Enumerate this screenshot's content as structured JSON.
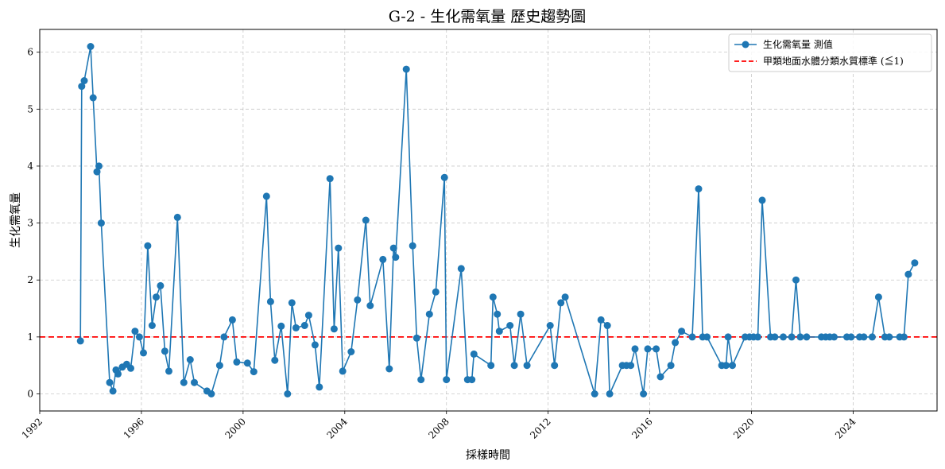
{
  "chart_data": {
    "type": "line",
    "title": "G-2 - 生化需氧量 歷史趨勢圖",
    "xlabel": "採樣時間",
    "ylabel": "生化需氧量",
    "xlim": [
      1992.0,
      2027.3
    ],
    "ylim": [
      -0.3,
      6.4
    ],
    "x_ticks": [
      1992,
      1996,
      2000,
      2004,
      2008,
      2012,
      2016,
      2020,
      2024
    ],
    "x_tick_labels": [
      "1992",
      "1996",
      "2000",
      "2004",
      "2008",
      "2012",
      "2016",
      "2020",
      "2024"
    ],
    "y_ticks": [
      0,
      1,
      2,
      3,
      4,
      5,
      6
    ],
    "y_tick_labels": [
      "0",
      "1",
      "2",
      "3",
      "4",
      "5",
      "6"
    ],
    "grid": true,
    "legend_position": "top-right",
    "series": [
      {
        "name": "生化需氧量 測值",
        "color": "#1f77b4",
        "marker": "circle",
        "points": [
          [
            1993.6,
            0.93
          ],
          [
            1993.65,
            5.4
          ],
          [
            1993.75,
            5.5
          ],
          [
            1994.0,
            6.1
          ],
          [
            1994.1,
            5.2
          ],
          [
            1994.25,
            3.9
          ],
          [
            1994.33,
            4.0
          ],
          [
            1994.42,
            3.0
          ],
          [
            1994.75,
            0.2
          ],
          [
            1994.88,
            0.05
          ],
          [
            1995.0,
            0.42
          ],
          [
            1995.08,
            0.35
          ],
          [
            1995.25,
            0.47
          ],
          [
            1995.42,
            0.52
          ],
          [
            1995.58,
            0.45
          ],
          [
            1995.75,
            1.1
          ],
          [
            1995.92,
            1.0
          ],
          [
            1996.08,
            0.72
          ],
          [
            1996.25,
            2.6
          ],
          [
            1996.42,
            1.2
          ],
          [
            1996.58,
            1.7
          ],
          [
            1996.75,
            1.9
          ],
          [
            1996.92,
            0.75
          ],
          [
            1997.08,
            0.4
          ],
          [
            1997.42,
            3.1
          ],
          [
            1997.67,
            0.2
          ],
          [
            1997.92,
            0.6
          ],
          [
            1998.08,
            0.2
          ],
          [
            1998.58,
            0.05
          ],
          [
            1998.75,
            0.0
          ],
          [
            1999.08,
            0.5
          ],
          [
            1999.25,
            1.0
          ],
          [
            1999.58,
            1.3
          ],
          [
            1999.75,
            0.56
          ],
          [
            2000.17,
            0.54
          ],
          [
            2000.42,
            0.39
          ],
          [
            2000.92,
            3.47
          ],
          [
            2001.08,
            1.62
          ],
          [
            2001.25,
            0.59
          ],
          [
            2001.5,
            1.19
          ],
          [
            2001.75,
            0.0
          ],
          [
            2001.92,
            1.6
          ],
          [
            2002.08,
            1.16
          ],
          [
            2002.42,
            1.2
          ],
          [
            2002.58,
            1.38
          ],
          [
            2002.83,
            0.86
          ],
          [
            2003.0,
            0.12
          ],
          [
            2003.42,
            3.78
          ],
          [
            2003.58,
            1.14
          ],
          [
            2003.75,
            2.56
          ],
          [
            2003.92,
            0.4
          ],
          [
            2004.25,
            0.74
          ],
          [
            2004.5,
            1.65
          ],
          [
            2004.83,
            3.05
          ],
          [
            2005.0,
            1.55
          ],
          [
            2005.5,
            2.36
          ],
          [
            2005.75,
            0.44
          ],
          [
            2005.92,
            2.56
          ],
          [
            2006.0,
            2.4
          ],
          [
            2006.42,
            5.7
          ],
          [
            2006.67,
            2.6
          ],
          [
            2006.83,
            0.98
          ],
          [
            2007.0,
            0.25
          ],
          [
            2007.33,
            1.4
          ],
          [
            2007.58,
            1.79
          ],
          [
            2007.92,
            3.8
          ],
          [
            2008.0,
            0.25
          ],
          [
            2008.58,
            2.2
          ],
          [
            2008.83,
            0.25
          ],
          [
            2009.0,
            0.25
          ],
          [
            2009.08,
            0.7
          ],
          [
            2009.75,
            0.5
          ],
          [
            2009.83,
            1.7
          ],
          [
            2010.0,
            1.4
          ],
          [
            2010.08,
            1.1
          ],
          [
            2010.5,
            1.2
          ],
          [
            2010.67,
            0.5
          ],
          [
            2010.92,
            1.4
          ],
          [
            2011.17,
            0.5
          ],
          [
            2012.08,
            1.2
          ],
          [
            2012.25,
            0.5
          ],
          [
            2012.5,
            1.6
          ],
          [
            2012.67,
            1.7
          ],
          [
            2013.83,
            0.0
          ],
          [
            2014.08,
            1.3
          ],
          [
            2014.33,
            1.2
          ],
          [
            2014.42,
            0.0
          ],
          [
            2014.92,
            0.5
          ],
          [
            2015.08,
            0.5
          ],
          [
            2015.25,
            0.5
          ],
          [
            2015.42,
            0.79
          ],
          [
            2015.75,
            0.0
          ],
          [
            2015.92,
            0.79
          ],
          [
            2016.25,
            0.79
          ],
          [
            2016.42,
            0.3
          ],
          [
            2016.83,
            0.5
          ],
          [
            2017.0,
            0.9
          ],
          [
            2017.25,
            1.1
          ],
          [
            2017.67,
            1.0
          ],
          [
            2017.92,
            3.6
          ],
          [
            2018.08,
            1.0
          ],
          [
            2018.25,
            1.0
          ],
          [
            2018.83,
            0.5
          ],
          [
            2019.0,
            0.5
          ],
          [
            2019.08,
            1.0
          ],
          [
            2019.25,
            0.5
          ],
          [
            2019.75,
            1.0
          ],
          [
            2019.92,
            1.0
          ],
          [
            2020.08,
            1.0
          ],
          [
            2020.25,
            1.0
          ],
          [
            2020.42,
            3.4
          ],
          [
            2020.75,
            1.0
          ],
          [
            2020.92,
            1.0
          ],
          [
            2021.25,
            1.0
          ],
          [
            2021.58,
            1.0
          ],
          [
            2021.75,
            2.0
          ],
          [
            2021.92,
            1.0
          ],
          [
            2022.17,
            1.0
          ],
          [
            2022.75,
            1.0
          ],
          [
            2022.92,
            1.0
          ],
          [
            2023.08,
            1.0
          ],
          [
            2023.25,
            1.0
          ],
          [
            2023.75,
            1.0
          ],
          [
            2023.92,
            1.0
          ],
          [
            2024.25,
            1.0
          ],
          [
            2024.42,
            1.0
          ],
          [
            2024.75,
            1.0
          ],
          [
            2025.0,
            1.7
          ],
          [
            2025.25,
            1.0
          ],
          [
            2025.42,
            1.0
          ],
          [
            2025.83,
            1.0
          ],
          [
            2026.0,
            1.0
          ],
          [
            2026.17,
            2.1
          ],
          [
            2026.42,
            2.3
          ]
        ]
      },
      {
        "name": "甲類地面水體分類水質標準 (≦1)",
        "color": "#ff0000",
        "style": "dashed",
        "y": 1
      }
    ]
  }
}
